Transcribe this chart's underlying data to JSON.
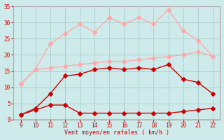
{
  "x": [
    9,
    10,
    11,
    12,
    13,
    14,
    15,
    16,
    17,
    18,
    19,
    20,
    21,
    22
  ],
  "line_bottom_dark": [
    1.5,
    3.0,
    4.5,
    4.5,
    2.0,
    2.0,
    2.0,
    2.0,
    2.0,
    2.0,
    2.0,
    2.5,
    3.0,
    3.5
  ],
  "line_mid_dark": [
    1.5,
    3.5,
    8.0,
    13.5,
    14.0,
    15.5,
    16.0,
    15.5,
    16.0,
    15.5,
    17.0,
    12.5,
    11.5,
    8.0
  ],
  "line_lower_pink": [
    11.0,
    15.5,
    16.0,
    16.5,
    17.0,
    17.5,
    18.0,
    18.0,
    18.5,
    19.0,
    19.5,
    20.0,
    21.0,
    19.5
  ],
  "line_upper_pink": [
    11.0,
    15.5,
    23.5,
    26.5,
    29.5,
    27.0,
    31.5,
    29.5,
    31.5,
    29.5,
    34.0,
    27.5,
    24.5,
    19.5
  ],
  "color_dark": "#cc0000",
  "color_pink": "#ffaaaa",
  "background": "#ceeaea",
  "grid_color": "#aacccc",
  "xlabel": "Vent moyen/en rafales ( km/h )",
  "ylim": [
    0,
    35
  ],
  "xlim": [
    9,
    22
  ],
  "yticks": [
    0,
    5,
    10,
    15,
    20,
    25,
    30,
    35
  ],
  "xticks": [
    9,
    10,
    11,
    12,
    13,
    14,
    15,
    16,
    17,
    18,
    19,
    20,
    21,
    22
  ],
  "tick_label_color": "#cc0000",
  "axis_label_color": "#cc0000",
  "spine_color": "#aaaaaa",
  "marker_size": 3,
  "line_width": 1.0
}
